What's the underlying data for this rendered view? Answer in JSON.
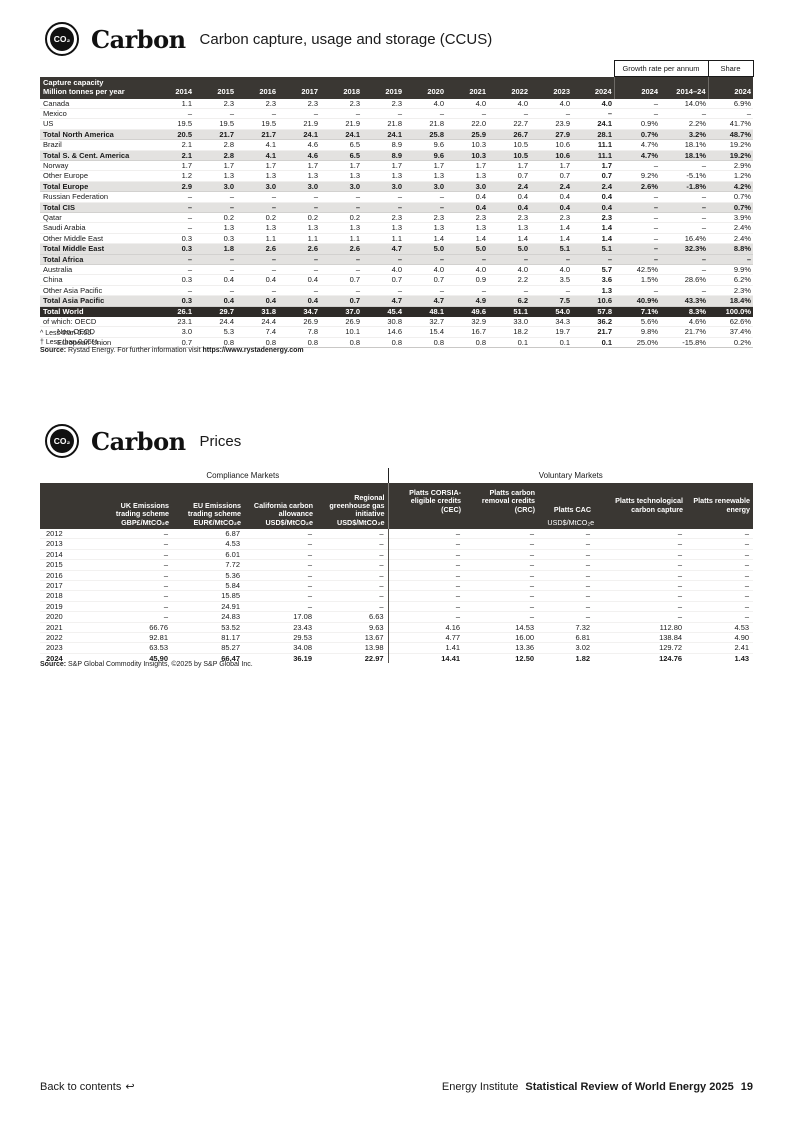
{
  "colors": {
    "header_bg": "#3a3733",
    "subtotal_bg": "#e3e2e0",
    "total_world_bg": "#2e2b28"
  },
  "header1": {
    "icon": "CO₂",
    "title": "Carbon",
    "subtitle": "Carbon capture, usage and storage (CCUS)"
  },
  "header2": {
    "icon": "CO₂",
    "title": "Carbon",
    "subtitle": "Prices"
  },
  "ccus": {
    "header_title": "Capture capacity\nMillion tonnes per year",
    "growth_header": "Growth rate per annum",
    "share_header": "Share",
    "years": [
      "2014",
      "2015",
      "2016",
      "2017",
      "2018",
      "2019",
      "2020",
      "2021",
      "2022",
      "2023",
      "2024"
    ],
    "growth_subcols": [
      "2024",
      "2014–24"
    ],
    "share_subcol": "2024",
    "rows": [
      {
        "label": "Canada",
        "v": [
          "1.1",
          "2.3",
          "2.3",
          "2.3",
          "2.3",
          "2.3",
          "4.0",
          "4.0",
          "4.0",
          "4.0",
          "4.0",
          "–",
          "14.0%",
          "6.9%"
        ]
      },
      {
        "label": "Mexico",
        "v": [
          "–",
          "–",
          "–",
          "–",
          "–",
          "–",
          "–",
          "–",
          "–",
          "–",
          "–",
          "–",
          "–",
          "–"
        ]
      },
      {
        "label": "US",
        "v": [
          "19.5",
          "19.5",
          "19.5",
          "21.9",
          "21.9",
          "21.8",
          "21.8",
          "22.0",
          "22.7",
          "23.9",
          "24.1",
          "0.9%",
          "2.2%",
          "41.7%"
        ]
      },
      {
        "label": "Total North America",
        "style": "sub",
        "v": [
          "20.5",
          "21.7",
          "21.7",
          "24.1",
          "24.1",
          "24.1",
          "25.8",
          "25.9",
          "26.7",
          "27.9",
          "28.1",
          "0.7%",
          "3.2%",
          "48.7%"
        ]
      },
      {
        "label": "Brazil",
        "v": [
          "2.1",
          "2.8",
          "4.1",
          "4.6",
          "6.5",
          "8.9",
          "9.6",
          "10.3",
          "10.5",
          "10.6",
          "11.1",
          "4.7%",
          "18.1%",
          "19.2%"
        ]
      },
      {
        "label": "Total S. & Cent. America",
        "style": "sub",
        "v": [
          "2.1",
          "2.8",
          "4.1",
          "4.6",
          "6.5",
          "8.9",
          "9.6",
          "10.3",
          "10.5",
          "10.6",
          "11.1",
          "4.7%",
          "18.1%",
          "19.2%"
        ]
      },
      {
        "label": "Norway",
        "v": [
          "1.7",
          "1.7",
          "1.7",
          "1.7",
          "1.7",
          "1.7",
          "1.7",
          "1.7",
          "1.7",
          "1.7",
          "1.7",
          "–",
          "–",
          "2.9%"
        ]
      },
      {
        "label": "Other Europe",
        "v": [
          "1.2",
          "1.3",
          "1.3",
          "1.3",
          "1.3",
          "1.3",
          "1.3",
          "1.3",
          "0.7",
          "0.7",
          "0.7",
          "9.2%",
          "-5.1%",
          "1.2%"
        ]
      },
      {
        "label": "Total Europe",
        "style": "sub",
        "v": [
          "2.9",
          "3.0",
          "3.0",
          "3.0",
          "3.0",
          "3.0",
          "3.0",
          "3.0",
          "2.4",
          "2.4",
          "2.4",
          "2.6%",
          "-1.8%",
          "4.2%"
        ]
      },
      {
        "label": "Russian Federation",
        "v": [
          "–",
          "–",
          "–",
          "–",
          "–",
          "–",
          "–",
          "0.4",
          "0.4",
          "0.4",
          "0.4",
          "–",
          "–",
          "0.7%"
        ]
      },
      {
        "label": "Total CIS",
        "style": "sub",
        "v": [
          "–",
          "–",
          "–",
          "–",
          "–",
          "–",
          "–",
          "0.4",
          "0.4",
          "0.4",
          "0.4",
          "–",
          "–",
          "0.7%"
        ]
      },
      {
        "label": "Qatar",
        "v": [
          "–",
          "0.2",
          "0.2",
          "0.2",
          "0.2",
          "2.3",
          "2.3",
          "2.3",
          "2.3",
          "2.3",
          "2.3",
          "–",
          "–",
          "3.9%"
        ]
      },
      {
        "label": "Saudi Arabia",
        "v": [
          "–",
          "1.3",
          "1.3",
          "1.3",
          "1.3",
          "1.3",
          "1.3",
          "1.3",
          "1.3",
          "1.4",
          "1.4",
          "–",
          "–",
          "2.4%"
        ]
      },
      {
        "label": "Other Middle East",
        "v": [
          "0.3",
          "0.3",
          "1.1",
          "1.1",
          "1.1",
          "1.1",
          "1.4",
          "1.4",
          "1.4",
          "1.4",
          "1.4",
          "–",
          "16.4%",
          "2.4%"
        ]
      },
      {
        "label": "Total Middle East",
        "style": "sub",
        "v": [
          "0.3",
          "1.8",
          "2.6",
          "2.6",
          "2.6",
          "4.7",
          "5.0",
          "5.0",
          "5.0",
          "5.1",
          "5.1",
          "–",
          "32.3%",
          "8.8%"
        ]
      },
      {
        "label": "Total Africa",
        "style": "sub",
        "v": [
          "–",
          "–",
          "–",
          "–",
          "–",
          "–",
          "–",
          "–",
          "–",
          "–",
          "–",
          "–",
          "–",
          "–"
        ]
      },
      {
        "label": "Australia",
        "v": [
          "–",
          "–",
          "–",
          "–",
          "–",
          "4.0",
          "4.0",
          "4.0",
          "4.0",
          "4.0",
          "5.7",
          "42.5%",
          "–",
          "9.9%"
        ]
      },
      {
        "label": "China",
        "v": [
          "0.3",
          "0.4",
          "0.4",
          "0.4",
          "0.7",
          "0.7",
          "0.7",
          "0.9",
          "2.2",
          "3.5",
          "3.6",
          "1.5%",
          "28.6%",
          "6.2%"
        ]
      },
      {
        "label": "Other Asia Pacific",
        "v": [
          "–",
          "–",
          "–",
          "–",
          "–",
          "–",
          "–",
          "–",
          "–",
          "–",
          "1.3",
          "–",
          "–",
          "2.3%"
        ]
      },
      {
        "label": "Total Asia Pacific",
        "style": "sub",
        "v": [
          "0.3",
          "0.4",
          "0.4",
          "0.4",
          "0.7",
          "4.7",
          "4.7",
          "4.9",
          "6.2",
          "7.5",
          "10.6",
          "40.9%",
          "43.3%",
          "18.4%"
        ]
      },
      {
        "label": "Total World",
        "style": "grand",
        "v": [
          "26.1",
          "29.7",
          "31.8",
          "34.7",
          "37.0",
          "45.4",
          "48.1",
          "49.6",
          "51.1",
          "54.0",
          "57.8",
          "7.1%",
          "8.3%",
          "100.0%"
        ]
      },
      {
        "label": "of which: OECD",
        "v": [
          "23.1",
          "24.4",
          "24.4",
          "26.9",
          "26.9",
          "30.8",
          "32.7",
          "32.9",
          "33.0",
          "34.3",
          "36.2",
          "5.6%",
          "4.6%",
          "62.6%"
        ]
      },
      {
        "label": "Non-OECD",
        "indent": true,
        "v": [
          "3.0",
          "5.3",
          "7.4",
          "7.8",
          "10.1",
          "14.6",
          "15.4",
          "16.7",
          "18.2",
          "19.7",
          "21.7",
          "9.8%",
          "21.7%",
          "37.4%"
        ]
      },
      {
        "label": "European Union",
        "indent": true,
        "v": [
          "0.7",
          "0.8",
          "0.8",
          "0.8",
          "0.8",
          "0.8",
          "0.8",
          "0.8",
          "0.1",
          "0.1",
          "0.1",
          "25.0%",
          "-15.8%",
          "0.2%"
        ]
      }
    ],
    "footnote1": "^ Less than 0.05.",
    "footnote2": "† Less than 0.05%.",
    "source_label": "Source:",
    "source_text": "Rystad Energy. For further information visit",
    "source_link": "https://www.rystadenergy.com"
  },
  "prices": {
    "group_compliance": "Compliance Markets",
    "group_voluntary": "Voluntary Markets",
    "columns": [
      "UK Emissions\ntrading scheme\nGBP£/MtCO₂e",
      "EU Emissions\ntrading scheme\nEUR€/MtCO₂e",
      "California carbon\nallowance\nUSD$/MtCO₂e",
      "Regional\ngreenhouse gas\ninitiative\nUSD$/MtCO₂e",
      "Platts CORSIA-\neligible credits\n(CEC)",
      "Platts carbon\nremoval credits\n(CRC)",
      "Platts CAC",
      "Platts technological\ncarbon capture",
      "Platts renewable\nenergy"
    ],
    "voluntary_unit": "USD$/MtCO₂e",
    "rows": [
      {
        "year": "2012",
        "v": [
          "–",
          "6.87",
          "–",
          "–",
          "–",
          "–",
          "–",
          "–",
          "–"
        ]
      },
      {
        "year": "2013",
        "v": [
          "–",
          "4.53",
          "–",
          "–",
          "–",
          "–",
          "–",
          "–",
          "–"
        ]
      },
      {
        "year": "2014",
        "v": [
          "–",
          "6.01",
          "–",
          "–",
          "–",
          "–",
          "–",
          "–",
          "–"
        ]
      },
      {
        "year": "2015",
        "v": [
          "–",
          "7.72",
          "–",
          "–",
          "–",
          "–",
          "–",
          "–",
          "–"
        ]
      },
      {
        "year": "2016",
        "v": [
          "–",
          "5.36",
          "–",
          "–",
          "–",
          "–",
          "–",
          "–",
          "–"
        ]
      },
      {
        "year": "2017",
        "v": [
          "–",
          "5.84",
          "–",
          "–",
          "–",
          "–",
          "–",
          "–",
          "–"
        ]
      },
      {
        "year": "2018",
        "v": [
          "–",
          "15.85",
          "–",
          "–",
          "–",
          "–",
          "–",
          "–",
          "–"
        ]
      },
      {
        "year": "2019",
        "v": [
          "–",
          "24.91",
          "–",
          "–",
          "–",
          "–",
          "–",
          "–",
          "–"
        ]
      },
      {
        "year": "2020",
        "v": [
          "–",
          "24.83",
          "17.08",
          "6.63",
          "–",
          "–",
          "–",
          "–",
          "–"
        ]
      },
      {
        "year": "2021",
        "v": [
          "66.76",
          "53.52",
          "23.43",
          "9.63",
          "4.16",
          "14.53",
          "7.32",
          "112.80",
          "4.53"
        ]
      },
      {
        "year": "2022",
        "v": [
          "92.81",
          "81.17",
          "29.53",
          "13.67",
          "4.77",
          "16.00",
          "6.81",
          "138.84",
          "4.90"
        ]
      },
      {
        "year": "2023",
        "v": [
          "63.53",
          "85.27",
          "34.08",
          "13.98",
          "1.41",
          "13.36",
          "3.02",
          "129.72",
          "2.41"
        ]
      },
      {
        "year": "2024",
        "bold": true,
        "v": [
          "45.90",
          "66.47",
          "36.19",
          "22.97",
          "14.41",
          "12.50",
          "1.82",
          "124.76",
          "1.43"
        ]
      }
    ],
    "source_label": "Source:",
    "source_text": "S&P Global Commodity Insights, ©2025 by S&P Global Inc."
  },
  "footer": {
    "back_label": "Back to contents",
    "back_icon": "↩",
    "org": "Energy Institute",
    "publication": "Statistical Review of World Energy 2025",
    "page_number": "19"
  }
}
